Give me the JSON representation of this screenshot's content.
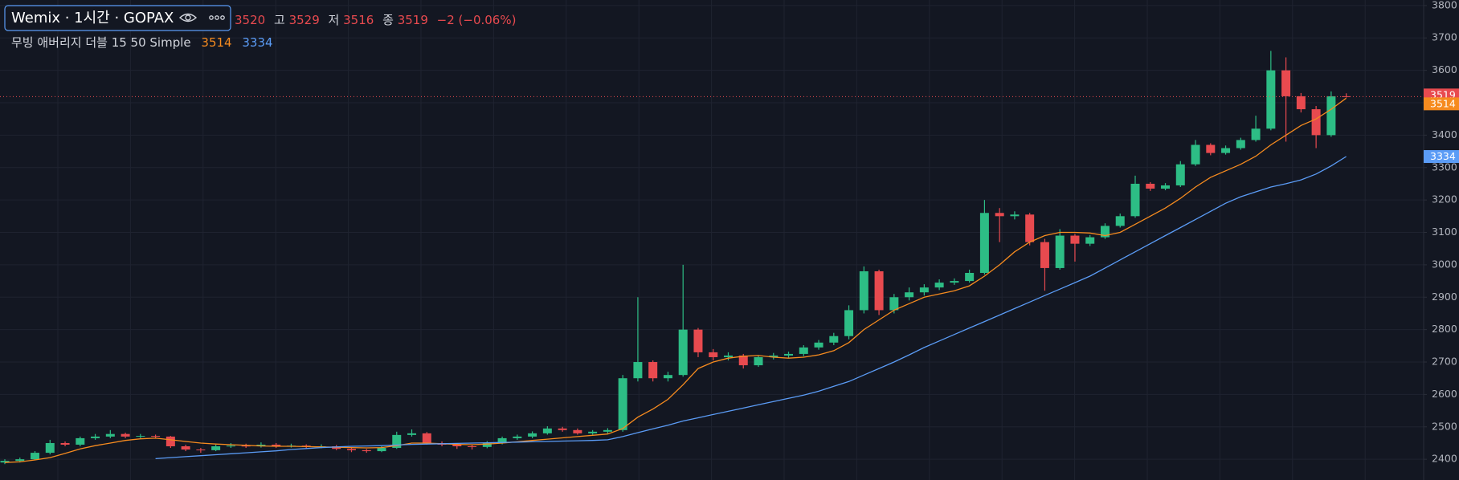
{
  "chart_data": {
    "type": "candlestick",
    "title": "Wemix · 1시간 · GOPAX",
    "high_label": "고",
    "low_label": "저",
    "close_label": "종",
    "change": "−2 (−0.06%)",
    "indicator": "무빙 애버리지 더블 15 50 Simple",
    "up_color": "#2dbd85",
    "down_color": "#e84a4f",
    "ylim": [
      2336,
      3817
    ],
    "yticks": [
      2400,
      2500,
      2600,
      2700,
      2800,
      2900,
      3000,
      3100,
      3200,
      3300,
      3400,
      3500,
      3600,
      3700,
      3800
    ],
    "grid": true,
    "candles": [
      [
        2390,
        2400,
        2385,
        2395
      ],
      [
        2395,
        2405,
        2390,
        2400
      ],
      [
        2400,
        2425,
        2398,
        2420
      ],
      [
        2420,
        2460,
        2415,
        2450
      ],
      [
        2450,
        2455,
        2440,
        2445
      ],
      [
        2445,
        2470,
        2440,
        2465
      ],
      [
        2465,
        2478,
        2460,
        2470
      ],
      [
        2470,
        2490,
        2465,
        2478
      ],
      [
        2478,
        2482,
        2465,
        2470
      ],
      [
        2470,
        2478,
        2465,
        2472
      ],
      [
        2472,
        2476,
        2465,
        2470
      ],
      [
        2470,
        2472,
        2435,
        2440
      ],
      [
        2440,
        2445,
        2425,
        2430
      ],
      [
        2430,
        2435,
        2420,
        2428
      ],
      [
        2428,
        2445,
        2425,
        2440
      ],
      [
        2440,
        2450,
        2435,
        2442
      ],
      [
        2442,
        2448,
        2435,
        2440
      ],
      [
        2440,
        2452,
        2436,
        2445
      ],
      [
        2445,
        2450,
        2435,
        2440
      ],
      [
        2440,
        2448,
        2436,
        2442
      ],
      [
        2442,
        2446,
        2432,
        2438
      ],
      [
        2438,
        2446,
        2434,
        2440
      ],
      [
        2440,
        2444,
        2428,
        2432
      ],
      [
        2432,
        2436,
        2422,
        2428
      ],
      [
        2428,
        2432,
        2420,
        2425
      ],
      [
        2425,
        2440,
        2422,
        2435
      ],
      [
        2435,
        2485,
        2432,
        2475
      ],
      [
        2475,
        2492,
        2470,
        2480
      ],
      [
        2480,
        2484,
        2445,
        2450
      ],
      [
        2450,
        2455,
        2440,
        2445
      ],
      [
        2445,
        2450,
        2432,
        2440
      ],
      [
        2440,
        2446,
        2430,
        2438
      ],
      [
        2438,
        2456,
        2434,
        2450
      ],
      [
        2450,
        2470,
        2446,
        2465
      ],
      [
        2465,
        2476,
        2460,
        2470
      ],
      [
        2470,
        2486,
        2465,
        2480
      ],
      [
        2480,
        2502,
        2476,
        2495
      ],
      [
        2495,
        2500,
        2485,
        2490
      ],
      [
        2490,
        2495,
        2476,
        2480
      ],
      [
        2480,
        2490,
        2476,
        2485
      ],
      [
        2485,
        2496,
        2480,
        2490
      ],
      [
        2490,
        2660,
        2485,
        2650
      ],
      [
        2650,
        2900,
        2640,
        2700
      ],
      [
        2700,
        2705,
        2640,
        2650
      ],
      [
        2650,
        2670,
        2640,
        2660
      ],
      [
        2660,
        3000,
        2655,
        2800
      ],
      [
        2800,
        2805,
        2715,
        2730
      ],
      [
        2730,
        2740,
        2705,
        2715
      ],
      [
        2715,
        2730,
        2705,
        2720
      ],
      [
        2720,
        2725,
        2680,
        2690
      ],
      [
        2690,
        2720,
        2685,
        2715
      ],
      [
        2715,
        2728,
        2708,
        2720
      ],
      [
        2720,
        2732,
        2712,
        2725
      ],
      [
        2725,
        2752,
        2718,
        2745
      ],
      [
        2745,
        2768,
        2738,
        2760
      ],
      [
        2760,
        2790,
        2752,
        2780
      ],
      [
        2780,
        2875,
        2770,
        2860
      ],
      [
        2860,
        2995,
        2850,
        2980
      ],
      [
        2980,
        2985,
        2845,
        2860
      ],
      [
        2860,
        2910,
        2850,
        2900
      ],
      [
        2900,
        2930,
        2890,
        2915
      ],
      [
        2915,
        2940,
        2905,
        2930
      ],
      [
        2930,
        2955,
        2922,
        2945
      ],
      [
        2945,
        2958,
        2938,
        2950
      ],
      [
        2950,
        2985,
        2945,
        2975
      ],
      [
        2975,
        3200,
        2970,
        3160
      ],
      [
        3160,
        3175,
        3070,
        3150
      ],
      [
        3150,
        3165,
        3140,
        3155
      ],
      [
        3155,
        3160,
        3060,
        3070
      ],
      [
        3070,
        3080,
        2920,
        2990
      ],
      [
        2990,
        3110,
        2985,
        3090
      ],
      [
        3090,
        3095,
        3010,
        3065
      ],
      [
        3065,
        3092,
        3058,
        3085
      ],
      [
        3085,
        3128,
        3080,
        3120
      ],
      [
        3120,
        3158,
        3115,
        3150
      ],
      [
        3150,
        3275,
        3145,
        3250
      ],
      [
        3250,
        3255,
        3228,
        3235
      ],
      [
        3235,
        3252,
        3230,
        3245
      ],
      [
        3245,
        3320,
        3240,
        3310
      ],
      [
        3310,
        3385,
        3305,
        3370
      ],
      [
        3370,
        3375,
        3338,
        3345
      ],
      [
        3345,
        3368,
        3340,
        3360
      ],
      [
        3360,
        3392,
        3355,
        3385
      ],
      [
        3385,
        3460,
        3380,
        3420
      ],
      [
        3420,
        3660,
        3415,
        3600
      ],
      [
        3600,
        3640,
        3380,
        3520
      ],
      [
        3520,
        3530,
        3470,
        3480
      ],
      [
        3480,
        3490,
        3360,
        3400
      ],
      [
        3400,
        3535,
        3395,
        3520
      ],
      [
        3520,
        3529,
        3516,
        3519
      ]
    ],
    "series": [
      {
        "color": "#f68b1f",
        "values": [
          2390,
          2392,
          2398,
          2405,
          2418,
          2432,
          2442,
          2450,
          2458,
          2463,
          2465,
          2460,
          2455,
          2450,
          2447,
          2445,
          2443,
          2441,
          2440,
          2440,
          2439,
          2438,
          2437,
          2436,
          2435,
          2436,
          2442,
          2450,
          2450,
          2448,
          2446,
          2445,
          2447,
          2450,
          2454,
          2458,
          2462,
          2466,
          2470,
          2474,
          2478,
          2495,
          2530,
          2555,
          2585,
          2630,
          2680,
          2700,
          2712,
          2718,
          2720,
          2715,
          2712,
          2715,
          2722,
          2735,
          2760,
          2800,
          2830,
          2860,
          2880,
          2900,
          2910,
          2920,
          2935,
          2965,
          3000,
          3040,
          3070,
          3090,
          3100,
          3100,
          3098,
          3090,
          3100,
          3125,
          3150,
          3175,
          3205,
          3240,
          3270,
          3290,
          3310,
          3335,
          3370,
          3400,
          3430,
          3450,
          3480,
          3514
        ]
      },
      {
        "color": "#5b9cf6",
        "values": [
          null,
          null,
          null,
          null,
          null,
          null,
          null,
          null,
          null,
          null,
          2402,
          2405,
          2408,
          2411,
          2414,
          2417,
          2420,
          2423,
          2426,
          2430,
          2433,
          2436,
          2438,
          2440,
          2441,
          2442,
          2444,
          2446,
          2447,
          2448,
          2449,
          2450,
          2451,
          2452,
          2453,
          2454,
          2455,
          2456,
          2457,
          2458,
          2460,
          2470,
          2482,
          2494,
          2505,
          2518,
          2528,
          2538,
          2548,
          2558,
          2568,
          2578,
          2588,
          2598,
          2610,
          2625,
          2640,
          2660,
          2680,
          2700,
          2722,
          2745,
          2765,
          2785,
          2805,
          2825,
          2845,
          2865,
          2885,
          2905,
          2925,
          2945,
          2965,
          2990,
          3015,
          3040,
          3065,
          3090,
          3115,
          3140,
          3165,
          3190,
          3210,
          3225,
          3240,
          3250,
          3262,
          3280,
          3305,
          3334
        ]
      }
    ]
  }
}
